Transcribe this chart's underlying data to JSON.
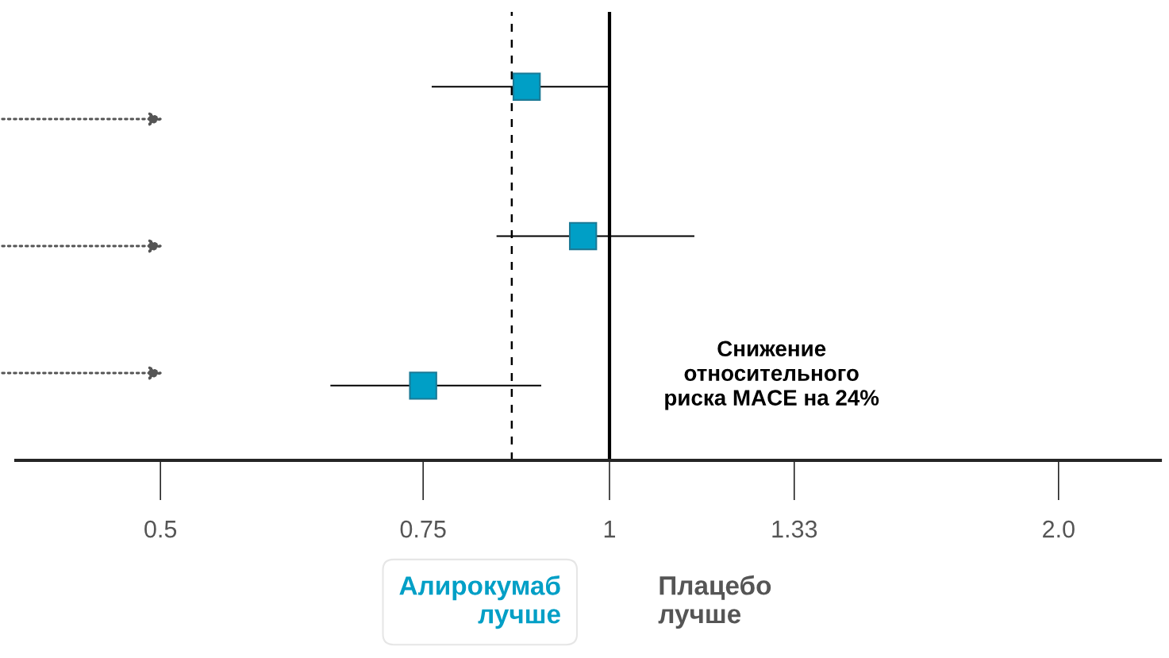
{
  "chart_data": {
    "type": "scatter",
    "categories": [
      null,
      null,
      null
    ],
    "orientation": "horizontal",
    "series": [
      {
        "color": "#009fc6",
        "values": [
          0.88,
          0.96,
          0.75
        ],
        "errors": [
          [
            0.76,
            1.0
          ],
          [
            0.84,
            1.14
          ],
          [
            0.65,
            0.9
          ]
        ]
      }
    ],
    "marker": "square",
    "log": "x",
    "xlim": [
      0.4,
      2.34
    ],
    "xticks": [
      0.5,
      0.75,
      1,
      1.33,
      {
        "value": 2,
        "label": "2.0"
      }
    ],
    "ref_lines": [
      {
        "axis": "x",
        "value": 1,
        "line_style": "solid",
        "color": "#000000"
      },
      {
        "axis": "x",
        "value": 0.86,
        "line_style": "dashed",
        "color": "#000000"
      }
    ],
    "annotations": [
      "Снижение\nотносительного\nриска MACE на 24%",
      "Алирокумаб\nлучше",
      "Плацебо\nлучше"
    ],
    "grid": false,
    "tick_labels": "x"
  }
}
